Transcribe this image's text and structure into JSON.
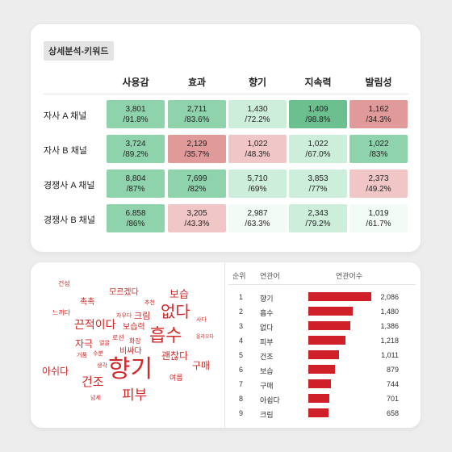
{
  "top": {
    "section_title": "상세분석-키워드",
    "columns": [
      "사용감",
      "효과",
      "향기",
      "지속력",
      "발림성"
    ],
    "rows": [
      {
        "label": "자사 A 채널",
        "cells": [
          {
            "value": "3,801",
            "pct": "/91.8%",
            "tone": "g2"
          },
          {
            "value": "2,711",
            "pct": "/83.6%",
            "tone": "g2"
          },
          {
            "value": "1,430",
            "pct": "/72.2%",
            "tone": "g1"
          },
          {
            "value": "1,409",
            "pct": "/98.8%",
            "tone": "g3"
          },
          {
            "value": "1,162",
            "pct": "/34.3%",
            "tone": "r2"
          }
        ]
      },
      {
        "label": "자사 B 채널",
        "cells": [
          {
            "value": "3,724",
            "pct": "/89.2%",
            "tone": "g2"
          },
          {
            "value": "2,129",
            "pct": "/35.7%",
            "tone": "r2"
          },
          {
            "value": "1,022",
            "pct": "/48.3%",
            "tone": "r1"
          },
          {
            "value": "1,022",
            "pct": "/67.0%",
            "tone": "g1"
          },
          {
            "value": "1,022",
            "pct": "/83%",
            "tone": "g2"
          }
        ]
      },
      {
        "label": "경쟁사 A 채널",
        "cells": [
          {
            "value": "8,804",
            "pct": "/87%",
            "tone": "g2"
          },
          {
            "value": "7,699",
            "pct": "/82%",
            "tone": "g2"
          },
          {
            "value": "5,710",
            "pct": "/69%",
            "tone": "g1"
          },
          {
            "value": "3,853",
            "pct": "/77%",
            "tone": "g1"
          },
          {
            "value": "2,373",
            "pct": "/49.2%",
            "tone": "r1"
          }
        ]
      },
      {
        "label": "경쟁사 B 채널",
        "cells": [
          {
            "value": "6.858",
            "pct": "/86%",
            "tone": "g2"
          },
          {
            "value": "3,205",
            "pct": "/43.3%",
            "tone": "r1"
          },
          {
            "value": "2,987",
            "pct": "/63.3%",
            "tone": "g0"
          },
          {
            "value": "2,343",
            "pct": "/79.2%",
            "tone": "g1"
          },
          {
            "value": "1,019",
            "pct": "/61.7%",
            "tone": "g0"
          }
        ]
      }
    ]
  },
  "cloud": [
    {
      "text": "건성",
      "size": 8
    },
    {
      "text": "모르겠다",
      "size": 10
    },
    {
      "text": "보습",
      "size": 13
    },
    {
      "text": "촉촉",
      "size": 10
    },
    {
      "text": "추천",
      "size": 7
    },
    {
      "text": "느끼다",
      "size": 8
    },
    {
      "text": "자우다",
      "size": 7
    },
    {
      "text": "크림",
      "size": 11
    },
    {
      "text": "없다",
      "size": 20
    },
    {
      "text": "사다",
      "size": 7
    },
    {
      "text": "끈적이다",
      "size": 14
    },
    {
      "text": "보습력",
      "size": 10
    },
    {
      "text": "로션",
      "size": 8
    },
    {
      "text": "흡수",
      "size": 22
    },
    {
      "text": "올라오다",
      "size": 6
    },
    {
      "text": "자극",
      "size": 12
    },
    {
      "text": "화장",
      "size": 8
    },
    {
      "text": "얼굴",
      "size": 7
    },
    {
      "text": "비싸다",
      "size": 10
    },
    {
      "text": "괜찮다",
      "size": 12
    },
    {
      "text": "거품",
      "size": 7
    },
    {
      "text": "수분",
      "size": 7
    },
    {
      "text": "생각",
      "size": 7
    },
    {
      "text": "구매",
      "size": 12
    },
    {
      "text": "아쉬다",
      "size": 12
    },
    {
      "text": "향기",
      "size": 30
    },
    {
      "text": "건조",
      "size": 15
    },
    {
      "text": "여름",
      "size": 9
    },
    {
      "text": "피부",
      "size": 17
    },
    {
      "text": "넘세",
      "size": 7
    }
  ],
  "keywords": {
    "headers": {
      "rank": "순위",
      "keyword": "연관어",
      "count": "연관어수"
    },
    "bar_color": "#cf2029",
    "items": [
      {
        "rank": "1",
        "name": "향기",
        "count_label": "2,086",
        "count": 2086
      },
      {
        "rank": "2",
        "name": "흡수",
        "count_label": "1,480",
        "count": 1480
      },
      {
        "rank": "3",
        "name": "없다",
        "count_label": "1,386",
        "count": 1386
      },
      {
        "rank": "4",
        "name": "피부",
        "count_label": "1,218",
        "count": 1218
      },
      {
        "rank": "5",
        "name": "건조",
        "count_label": "1,011",
        "count": 1011
      },
      {
        "rank": "6",
        "name": "보습",
        "count_label": "879",
        "count": 879
      },
      {
        "rank": "7",
        "name": "구매",
        "count_label": "744",
        "count": 744
      },
      {
        "rank": "8",
        "name": "아쉽다",
        "count_label": "701",
        "count": 701
      },
      {
        "rank": "9",
        "name": "크림",
        "count_label": "658",
        "count": 658
      }
    ]
  }
}
